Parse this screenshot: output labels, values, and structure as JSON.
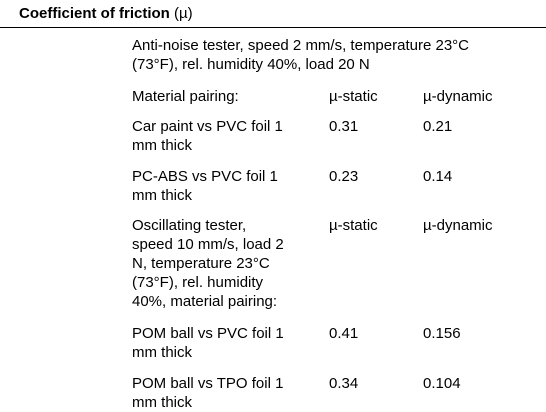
{
  "heading": {
    "title": "Coefficient of friction",
    "symbol": "(µ)"
  },
  "section1": {
    "conditions": [
      "Anti-noise tester, speed 2 mm/s, temperature 23°C",
      "(73°F), rel. humidity 40%, load 20 N"
    ],
    "header": {
      "label": "Material pairing:",
      "static": "µ-static",
      "dynamic": "µ-dynamic"
    },
    "rows": [
      {
        "pairing": [
          "Car paint vs PVC foil 1",
          "mm thick"
        ],
        "static": "0.31",
        "dynamic": "0.21"
      },
      {
        "pairing": [
          "PC-ABS vs PVC foil 1",
          "mm thick"
        ],
        "static": "0.23",
        "dynamic": "0.14"
      }
    ]
  },
  "section2": {
    "conditions": [
      "Oscillating tester,",
      "speed 10 mm/s, load 2",
      "N, temperature 23°C",
      "(73°F), rel. humidity",
      "40%, material pairing:"
    ],
    "static": "µ-static",
    "dynamic": "µ-dynamic",
    "rows": [
      {
        "pairing": [
          "POM ball vs PVC foil 1",
          "mm thick"
        ],
        "static": "0.41",
        "dynamic": "0.156"
      },
      {
        "pairing": [
          "POM ball vs TPO foil 1",
          "mm thick"
        ],
        "static": "0.34",
        "dynamic": "0.104"
      }
    ]
  }
}
